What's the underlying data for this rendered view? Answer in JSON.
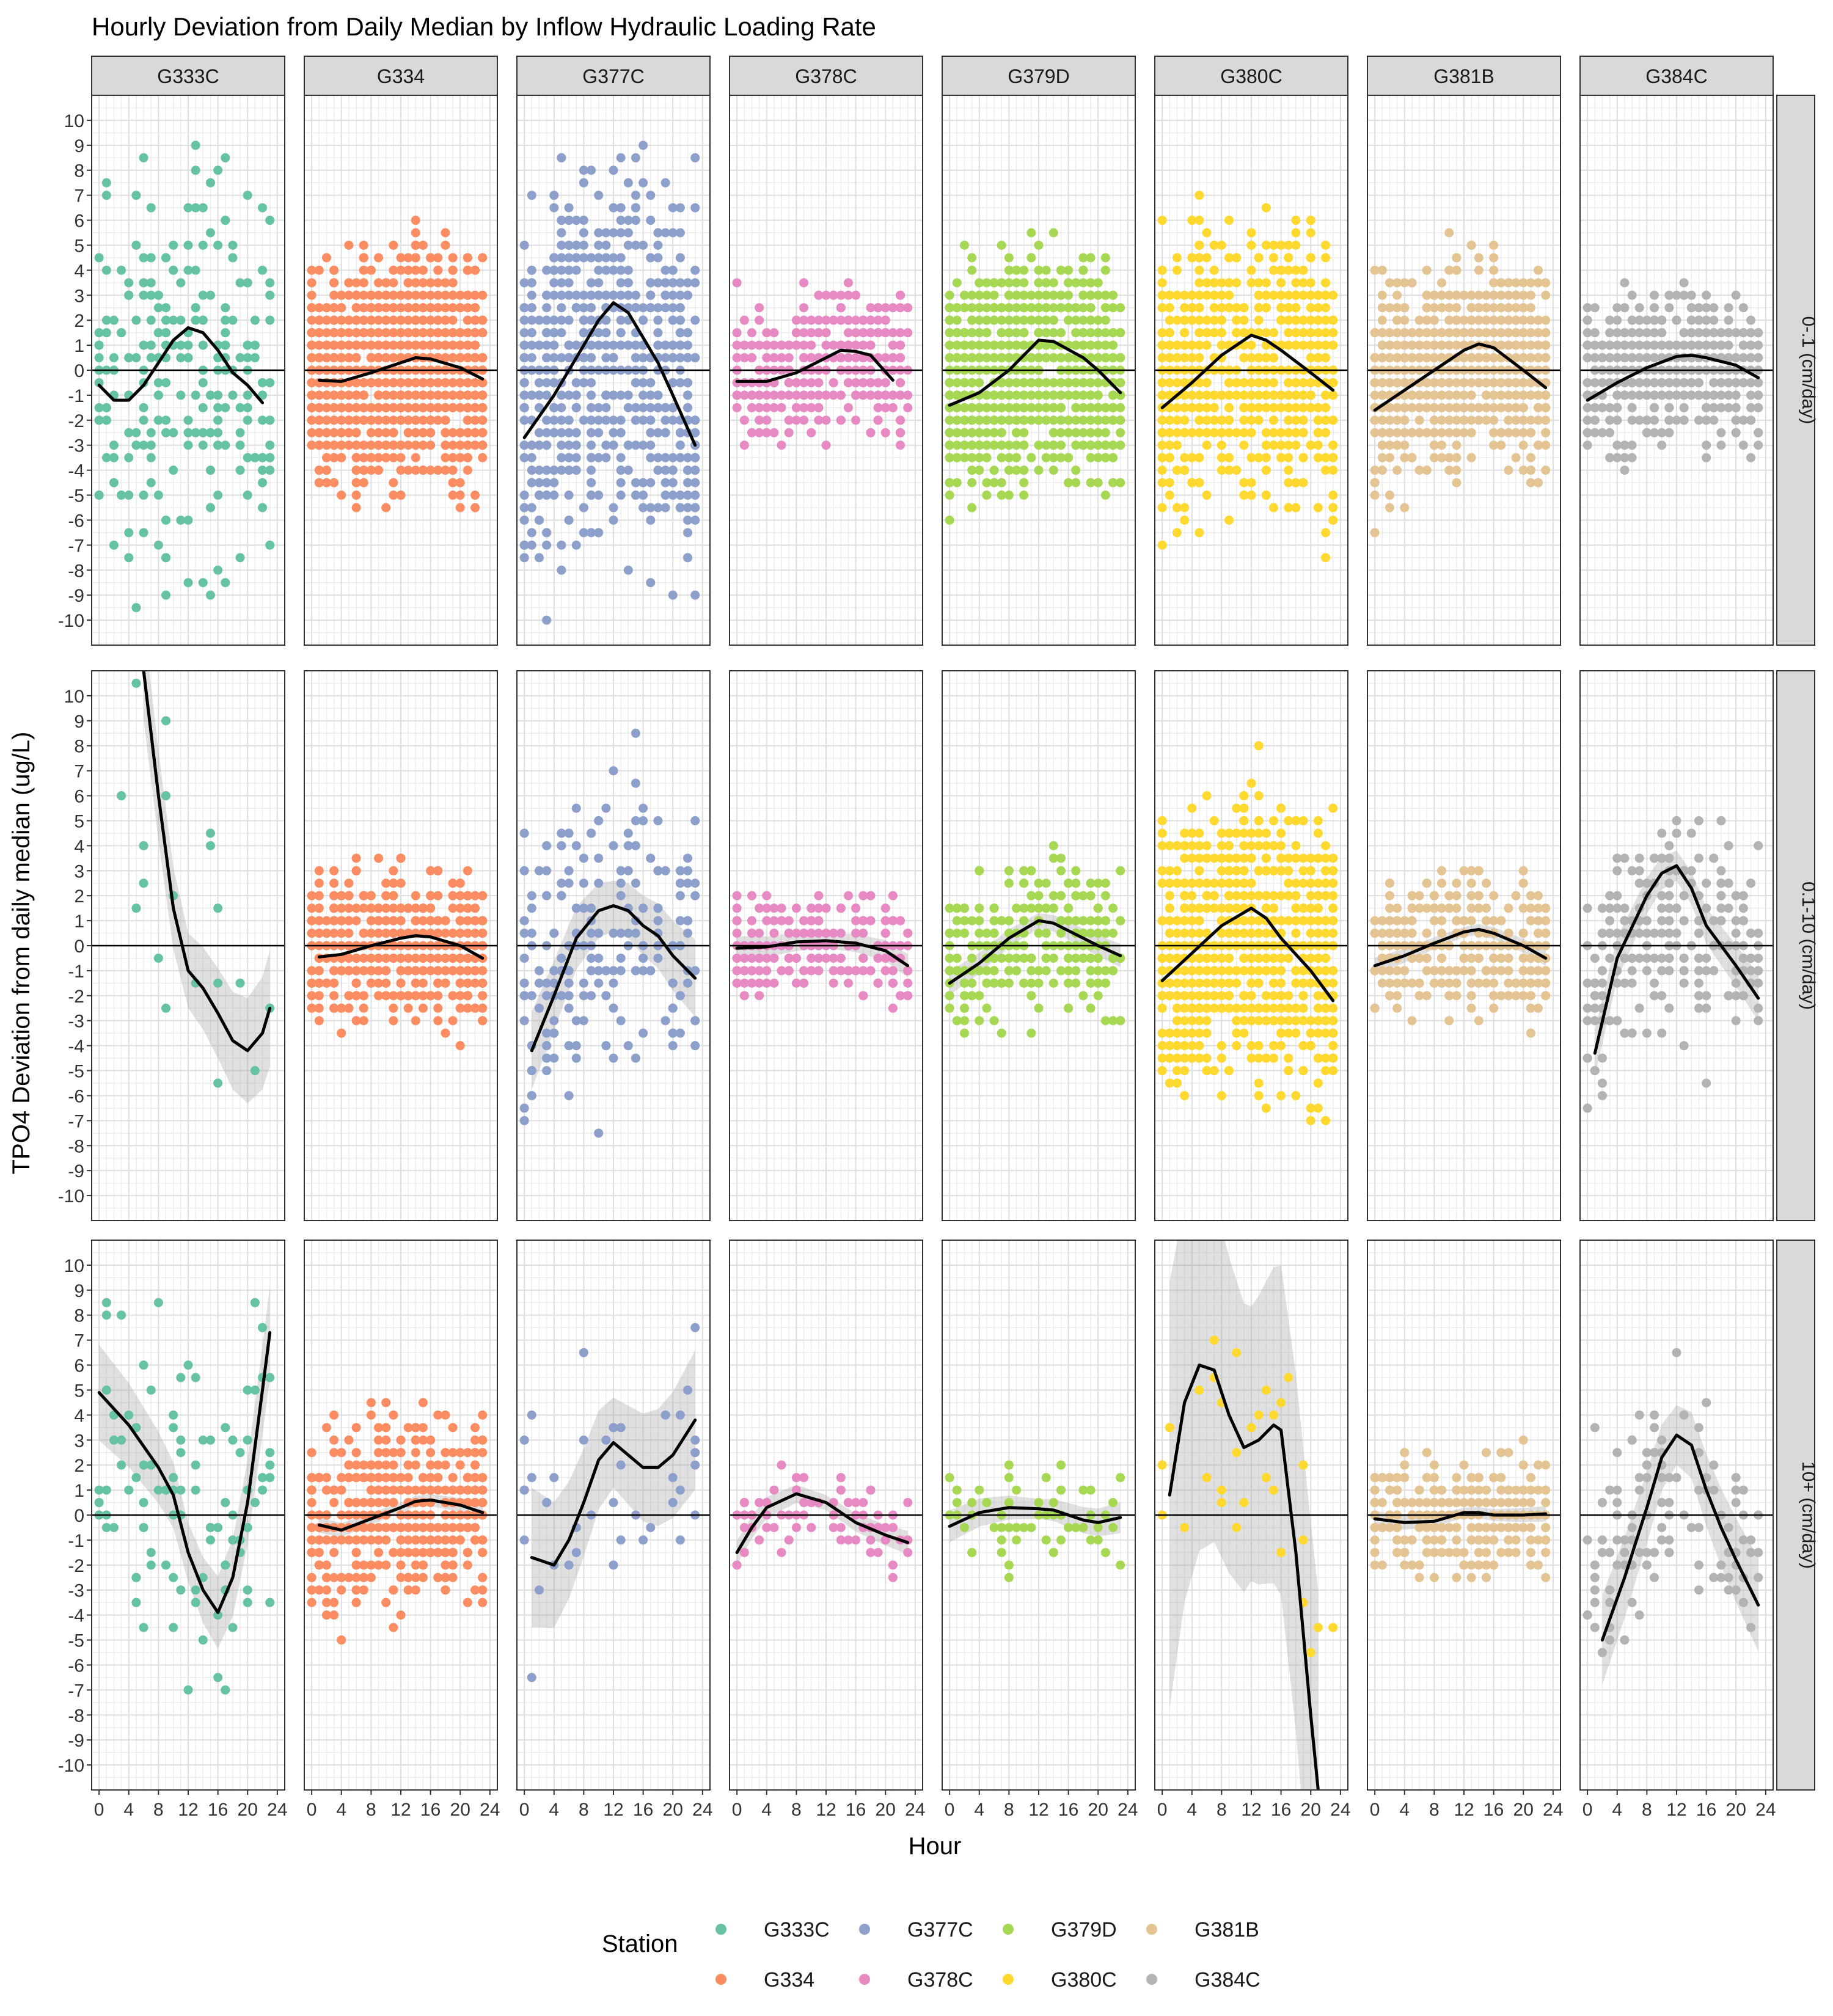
{
  "chart_data": {
    "type": "scatter",
    "title": "Hourly Deviation from Daily Median by Inflow Hydraulic Loading Rate",
    "xlabel": "Hour",
    "ylabel": "TPO4 Deviation from daily median (ug/L)",
    "xlim": [
      -1,
      25
    ],
    "ylim": [
      -11,
      11
    ],
    "x_ticks": [
      0,
      4,
      8,
      12,
      16,
      20,
      24
    ],
    "y_ticks": [
      -10,
      -9,
      -8,
      -7,
      -6,
      -5,
      -4,
      -3,
      -2,
      -1,
      0,
      1,
      2,
      3,
      4,
      5,
      6,
      7,
      8,
      9,
      10
    ],
    "grid": true,
    "facet_cols": [
      "G333C",
      "G334",
      "G377C",
      "G378C",
      "G379D",
      "G380C",
      "G381B",
      "G384C"
    ],
    "facet_rows": [
      "0-.1 (cm/day)",
      "0.1-10 (cm/day)",
      "10+ (cm/day)"
    ],
    "legend": {
      "title": "Station",
      "position": "bottom",
      "entries": [
        "G333C",
        "G334",
        "G377C",
        "G378C",
        "G379D",
        "G380C",
        "G381B",
        "G384C"
      ]
    },
    "colors": {
      "G333C": "#66C2A5",
      "G334": "#FC8D62",
      "G377C": "#8DA0CB",
      "G378C": "#E78AC3",
      "G379D": "#A6D854",
      "G380C": "#FFD92F",
      "G381B": "#E5C494",
      "G384C": "#B3B3B3"
    },
    "panels": [
      {
        "row": 0,
        "col": 0,
        "spread": 5.5,
        "n": 250,
        "band": 0,
        "smooth": [
          [
            0,
            -0.6
          ],
          [
            2,
            -1.2
          ],
          [
            4,
            -1.2
          ],
          [
            6,
            -0.6
          ],
          [
            8,
            0.3
          ],
          [
            10,
            1.2
          ],
          [
            12,
            1.7
          ],
          [
            14,
            1.5
          ],
          [
            16,
            0.8
          ],
          [
            18,
            -0.1
          ],
          [
            20,
            -0.6
          ],
          [
            22,
            -1.3
          ]
        ]
      },
      {
        "row": 0,
        "col": 1,
        "spread": 3.0,
        "n": 1200,
        "band": 0,
        "smooth": [
          [
            1,
            -0.4
          ],
          [
            4,
            -0.45
          ],
          [
            8,
            -0.1
          ],
          [
            12,
            0.3
          ],
          [
            14,
            0.5
          ],
          [
            16,
            0.45
          ],
          [
            20,
            0.1
          ],
          [
            23,
            -0.35
          ]
        ]
      },
      {
        "row": 0,
        "col": 2,
        "spread": 5.0,
        "n": 700,
        "band": 0,
        "smooth": [
          [
            0,
            -2.7
          ],
          [
            4,
            -1.0
          ],
          [
            8,
            1.0
          ],
          [
            10,
            2.0
          ],
          [
            12,
            2.7
          ],
          [
            14,
            2.3
          ],
          [
            16,
            1.3
          ],
          [
            18,
            0.3
          ],
          [
            20,
            -1.0
          ],
          [
            23,
            -3.0
          ]
        ]
      },
      {
        "row": 0,
        "col": 3,
        "spread": 2.0,
        "n": 350,
        "band": 0,
        "smooth": [
          [
            0,
            -0.45
          ],
          [
            4,
            -0.45
          ],
          [
            8,
            -0.1
          ],
          [
            12,
            0.5
          ],
          [
            14,
            0.8
          ],
          [
            16,
            0.75
          ],
          [
            18,
            0.6
          ],
          [
            21,
            -0.4
          ]
        ]
      },
      {
        "row": 0,
        "col": 4,
        "spread": 3.0,
        "n": 1000,
        "band": 0,
        "smooth": [
          [
            0,
            -1.4
          ],
          [
            4,
            -0.9
          ],
          [
            8,
            0.0
          ],
          [
            12,
            1.2
          ],
          [
            14,
            1.15
          ],
          [
            18,
            0.5
          ],
          [
            20,
            0.0
          ],
          [
            23,
            -0.9
          ]
        ]
      },
      {
        "row": 0,
        "col": 5,
        "spread": 3.8,
        "n": 700,
        "band": 0,
        "smooth": [
          [
            0,
            -1.5
          ],
          [
            4,
            -0.5
          ],
          [
            8,
            0.6
          ],
          [
            12,
            1.4
          ],
          [
            14,
            1.2
          ],
          [
            16,
            0.8
          ],
          [
            20,
            -0.1
          ],
          [
            23,
            -0.8
          ]
        ]
      },
      {
        "row": 0,
        "col": 6,
        "spread": 2.7,
        "n": 900,
        "band": 0,
        "smooth": [
          [
            0,
            -1.6
          ],
          [
            4,
            -0.8
          ],
          [
            8,
            0.0
          ],
          [
            12,
            0.8
          ],
          [
            14,
            1.05
          ],
          [
            16,
            0.9
          ],
          [
            20,
            0.0
          ],
          [
            23,
            -0.7
          ]
        ]
      },
      {
        "row": 0,
        "col": 7,
        "spread": 2.0,
        "n": 500,
        "band": 0,
        "smooth": [
          [
            0,
            -1.2
          ],
          [
            4,
            -0.5
          ],
          [
            8,
            0.1
          ],
          [
            12,
            0.55
          ],
          [
            14,
            0.6
          ],
          [
            16,
            0.5
          ],
          [
            20,
            0.2
          ],
          [
            23,
            -0.3
          ]
        ]
      },
      {
        "row": 1,
        "col": 0,
        "spread": 5.0,
        "n": 20,
        "band": 1.5,
        "smooth": [
          [
            6,
            11.0
          ],
          [
            8,
            6.0
          ],
          [
            10,
            1.5
          ],
          [
            12,
            -1.0
          ],
          [
            14,
            -1.7
          ],
          [
            16,
            -2.7
          ],
          [
            18,
            -3.8
          ],
          [
            20,
            -4.2
          ],
          [
            22,
            -3.5
          ],
          [
            23,
            -2.5
          ]
        ]
      },
      {
        "row": 1,
        "col": 1,
        "spread": 2.0,
        "n": 500,
        "band": 0,
        "smooth": [
          [
            1,
            -0.45
          ],
          [
            4,
            -0.35
          ],
          [
            8,
            0.0
          ],
          [
            12,
            0.3
          ],
          [
            14,
            0.4
          ],
          [
            16,
            0.35
          ],
          [
            20,
            0.0
          ],
          [
            23,
            -0.5
          ]
        ]
      },
      {
        "row": 1,
        "col": 2,
        "spread": 4.5,
        "n": 200,
        "band": 1.0,
        "smooth": [
          [
            1,
            -4.2
          ],
          [
            4,
            -2.0
          ],
          [
            7,
            0.3
          ],
          [
            10,
            1.4
          ],
          [
            12,
            1.6
          ],
          [
            14,
            1.4
          ],
          [
            16,
            0.8
          ],
          [
            18,
            0.4
          ],
          [
            20,
            -0.4
          ],
          [
            23,
            -1.3
          ]
        ]
      },
      {
        "row": 1,
        "col": 3,
        "spread": 1.5,
        "n": 200,
        "band": 0.3,
        "smooth": [
          [
            0,
            -0.1
          ],
          [
            4,
            -0.05
          ],
          [
            8,
            0.15
          ],
          [
            12,
            0.2
          ],
          [
            16,
            0.1
          ],
          [
            20,
            -0.2
          ],
          [
            23,
            -0.8
          ]
        ]
      },
      {
        "row": 1,
        "col": 4,
        "spread": 2.0,
        "n": 300,
        "band": 0.3,
        "smooth": [
          [
            0,
            -1.5
          ],
          [
            4,
            -0.7
          ],
          [
            8,
            0.3
          ],
          [
            12,
            1.0
          ],
          [
            14,
            0.9
          ],
          [
            16,
            0.6
          ],
          [
            20,
            0.0
          ],
          [
            23,
            -0.4
          ]
        ]
      },
      {
        "row": 1,
        "col": 5,
        "spread": 3.8,
        "n": 900,
        "band": 0,
        "smooth": [
          [
            0,
            -1.4
          ],
          [
            4,
            -0.3
          ],
          [
            8,
            0.8
          ],
          [
            12,
            1.5
          ],
          [
            14,
            1.1
          ],
          [
            16,
            0.3
          ],
          [
            20,
            -1.0
          ],
          [
            23,
            -2.2
          ]
        ]
      },
      {
        "row": 1,
        "col": 6,
        "spread": 1.8,
        "n": 350,
        "band": 0.2,
        "smooth": [
          [
            0,
            -0.8
          ],
          [
            4,
            -0.4
          ],
          [
            8,
            0.1
          ],
          [
            12,
            0.55
          ],
          [
            14,
            0.65
          ],
          [
            16,
            0.5
          ],
          [
            20,
            0.0
          ],
          [
            23,
            -0.5
          ]
        ]
      },
      {
        "row": 1,
        "col": 7,
        "spread": 3.0,
        "n": 250,
        "band": 0.6,
        "smooth": [
          [
            1,
            -4.3
          ],
          [
            4,
            -0.5
          ],
          [
            8,
            2.0
          ],
          [
            10,
            2.9
          ],
          [
            12,
            3.2
          ],
          [
            14,
            2.3
          ],
          [
            16,
            0.8
          ],
          [
            20,
            -0.8
          ],
          [
            23,
            -2.1
          ]
        ]
      },
      {
        "row": 2,
        "col": 0,
        "spread": 4.5,
        "n": 100,
        "band": 1.2,
        "smooth": [
          [
            0,
            4.9
          ],
          [
            4,
            3.6
          ],
          [
            8,
            1.9
          ],
          [
            10,
            0.8
          ],
          [
            12,
            -1.5
          ],
          [
            14,
            -3.0
          ],
          [
            16,
            -3.9
          ],
          [
            18,
            -2.5
          ],
          [
            20,
            0.5
          ],
          [
            22,
            5.0
          ],
          [
            23,
            7.3
          ]
        ]
      },
      {
        "row": 2,
        "col": 1,
        "spread": 2.5,
        "n": 500,
        "band": 0.2,
        "smooth": [
          [
            1,
            -0.4
          ],
          [
            4,
            -0.6
          ],
          [
            8,
            -0.15
          ],
          [
            12,
            0.3
          ],
          [
            14,
            0.55
          ],
          [
            16,
            0.6
          ],
          [
            20,
            0.4
          ],
          [
            23,
            0.1
          ]
        ]
      },
      {
        "row": 2,
        "col": 2,
        "spread": 3.5,
        "n": 40,
        "band": 1.8,
        "smooth": [
          [
            1,
            -1.7
          ],
          [
            4,
            -2.0
          ],
          [
            6,
            -1.0
          ],
          [
            8,
            0.5
          ],
          [
            10,
            2.2
          ],
          [
            12,
            2.9
          ],
          [
            14,
            2.4
          ],
          [
            16,
            1.9
          ],
          [
            18,
            1.9
          ],
          [
            20,
            2.4
          ],
          [
            23,
            3.8
          ]
        ]
      },
      {
        "row": 2,
        "col": 3,
        "spread": 1.2,
        "n": 80,
        "band": 0.3,
        "smooth": [
          [
            0,
            -1.5
          ],
          [
            2,
            -0.5
          ],
          [
            4,
            0.3
          ],
          [
            8,
            0.85
          ],
          [
            12,
            0.5
          ],
          [
            16,
            -0.3
          ],
          [
            20,
            -0.8
          ],
          [
            23,
            -1.1
          ]
        ]
      },
      {
        "row": 2,
        "col": 4,
        "spread": 1.5,
        "n": 60,
        "band": 0.4,
        "smooth": [
          [
            0,
            -0.45
          ],
          [
            4,
            0.1
          ],
          [
            8,
            0.3
          ],
          [
            12,
            0.25
          ],
          [
            14,
            0.2
          ],
          [
            16,
            0.0
          ],
          [
            18,
            -0.2
          ],
          [
            20,
            -0.3
          ],
          [
            23,
            -0.1
          ]
        ]
      },
      {
        "row": 2,
        "col": 5,
        "spread": 4.0,
        "n": 30,
        "band": 5.5,
        "smooth": [
          [
            1,
            0.8
          ],
          [
            3,
            4.5
          ],
          [
            5,
            6.0
          ],
          [
            7,
            5.8
          ],
          [
            9,
            4.0
          ],
          [
            11,
            2.7
          ],
          [
            13,
            3.0
          ],
          [
            15,
            3.6
          ],
          [
            16,
            3.4
          ],
          [
            18,
            -1.5
          ],
          [
            20,
            -8.0
          ],
          [
            21,
            -11.0
          ]
        ]
      },
      {
        "row": 2,
        "col": 6,
        "spread": 1.5,
        "n": 300,
        "band": 0.2,
        "smooth": [
          [
            0,
            -0.15
          ],
          [
            4,
            -0.3
          ],
          [
            8,
            -0.25
          ],
          [
            12,
            0.1
          ],
          [
            14,
            0.1
          ],
          [
            16,
            0.0
          ],
          [
            20,
            0.0
          ],
          [
            23,
            0.05
          ]
        ]
      },
      {
        "row": 2,
        "col": 7,
        "spread": 3.0,
        "n": 120,
        "band": 1.2,
        "smooth": [
          [
            2,
            -5.0
          ],
          [
            5,
            -2.5
          ],
          [
            8,
            0.3
          ],
          [
            10,
            2.3
          ],
          [
            12,
            3.2
          ],
          [
            14,
            2.8
          ],
          [
            16,
            1.0
          ],
          [
            18,
            -0.5
          ],
          [
            20,
            -1.8
          ],
          [
            23,
            -3.6
          ]
        ]
      }
    ]
  }
}
